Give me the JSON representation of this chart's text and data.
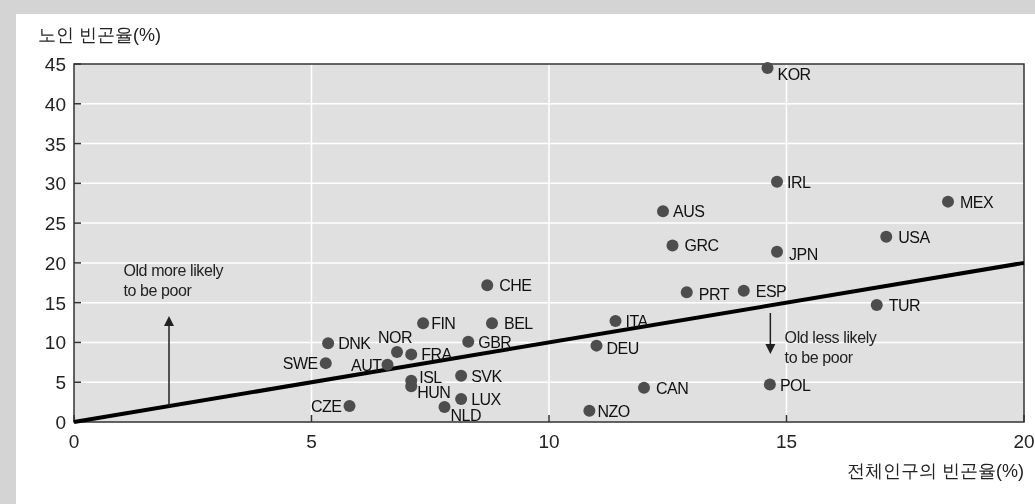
{
  "chart_data": {
    "type": "scatter",
    "ylabel": "노인 빈곤율(%)",
    "xlabel": "전체인구의 빈곤율(%)",
    "xlim": [
      0,
      20
    ],
    "xticks": [
      0,
      5,
      10,
      15,
      20
    ],
    "ylim": [
      0,
      45
    ],
    "yticks": [
      0,
      5,
      10,
      15,
      20,
      25,
      30,
      35,
      40,
      45
    ],
    "grid": true,
    "marker": "circle",
    "annotations": [
      "Old more likely to be poor",
      "Old less likely to be poor"
    ],
    "series": [
      {
        "name": "KOR",
        "color": "#4d4d4d",
        "x": [
          14.6
        ],
        "values": [
          44.5
        ]
      },
      {
        "name": "IRL",
        "color": "#4d4d4d",
        "x": [
          14.8
        ],
        "values": [
          30.2
        ]
      },
      {
        "name": "MEX",
        "color": "#4d4d4d",
        "x": [
          18.4
        ],
        "values": [
          27.7
        ]
      },
      {
        "name": "AUS",
        "color": "#4d4d4d",
        "x": [
          12.4
        ],
        "values": [
          26.5
        ]
      },
      {
        "name": "GRC",
        "color": "#4d4d4d",
        "x": [
          12.6
        ],
        "values": [
          22.2
        ]
      },
      {
        "name": "JPN",
        "color": "#4d4d4d",
        "x": [
          14.8
        ],
        "values": [
          21.4
        ]
      },
      {
        "name": "USA",
        "color": "#4d4d4d",
        "x": [
          17.1
        ],
        "values": [
          23.3
        ]
      },
      {
        "name": "CHE",
        "color": "#4d4d4d",
        "x": [
          8.7
        ],
        "values": [
          17.2
        ]
      },
      {
        "name": "PRT",
        "color": "#4d4d4d",
        "x": [
          12.9
        ],
        "values": [
          16.3
        ]
      },
      {
        "name": "ESP",
        "color": "#4d4d4d",
        "x": [
          14.1
        ],
        "values": [
          16.5
        ]
      },
      {
        "name": "TUR",
        "color": "#4d4d4d",
        "x": [
          16.9
        ],
        "values": [
          14.7
        ]
      },
      {
        "name": "ITA",
        "color": "#4d4d4d",
        "x": [
          11.4
        ],
        "values": [
          12.7
        ]
      },
      {
        "name": "BEL",
        "color": "#4d4d4d",
        "x": [
          8.8
        ],
        "values": [
          12.4
        ]
      },
      {
        "name": "FIN",
        "color": "#4d4d4d",
        "x": [
          7.35
        ],
        "values": [
          12.4
        ]
      },
      {
        "name": "DEU",
        "color": "#4d4d4d",
        "x": [
          11.0
        ],
        "values": [
          9.6
        ]
      },
      {
        "name": "GBR",
        "color": "#4d4d4d",
        "x": [
          8.3
        ],
        "values": [
          10.1
        ]
      },
      {
        "name": "DNK",
        "color": "#4d4d4d",
        "x": [
          5.35
        ],
        "values": [
          9.9
        ]
      },
      {
        "name": "NOR",
        "color": "#4d4d4d",
        "x": [
          6.8
        ],
        "values": [
          8.8
        ]
      },
      {
        "name": "FRA",
        "color": "#4d4d4d",
        "x": [
          7.1
        ],
        "values": [
          8.5
        ]
      },
      {
        "name": "SWE",
        "color": "#4d4d4d",
        "x": [
          5.3
        ],
        "values": [
          7.4
        ]
      },
      {
        "name": "AUT",
        "color": "#4d4d4d",
        "x": [
          6.6
        ],
        "values": [
          7.2
        ]
      },
      {
        "name": "ISL",
        "color": "#4d4d4d",
        "x": [
          7.1
        ],
        "values": [
          5.2
        ]
      },
      {
        "name": "HUN",
        "color": "#4d4d4d",
        "x": [
          7.1
        ],
        "values": [
          4.5
        ]
      },
      {
        "name": "SVK",
        "color": "#4d4d4d",
        "x": [
          8.15
        ],
        "values": [
          5.8
        ]
      },
      {
        "name": "LUX",
        "color": "#4d4d4d",
        "x": [
          8.15
        ],
        "values": [
          2.9
        ]
      },
      {
        "name": "NLD",
        "color": "#4d4d4d",
        "x": [
          7.8
        ],
        "values": [
          1.9
        ]
      },
      {
        "name": "CZE",
        "color": "#4d4d4d",
        "x": [
          5.8
        ],
        "values": [
          2.0
        ]
      },
      {
        "name": "NZO",
        "color": "#4d4d4d",
        "x": [
          10.85
        ],
        "values": [
          1.4
        ]
      },
      {
        "name": "CAN",
        "color": "#4d4d4d",
        "x": [
          12.0
        ],
        "values": [
          4.3
        ]
      },
      {
        "name": "POL",
        "color": "#4d4d4d",
        "x": [
          14.65
        ],
        "values": [
          4.7
        ]
      },
      {
        "type": "line",
        "marker": "none",
        "color": "#000000",
        "x": [
          0,
          20
        ],
        "values": [
          0,
          20
        ]
      }
    ]
  }
}
